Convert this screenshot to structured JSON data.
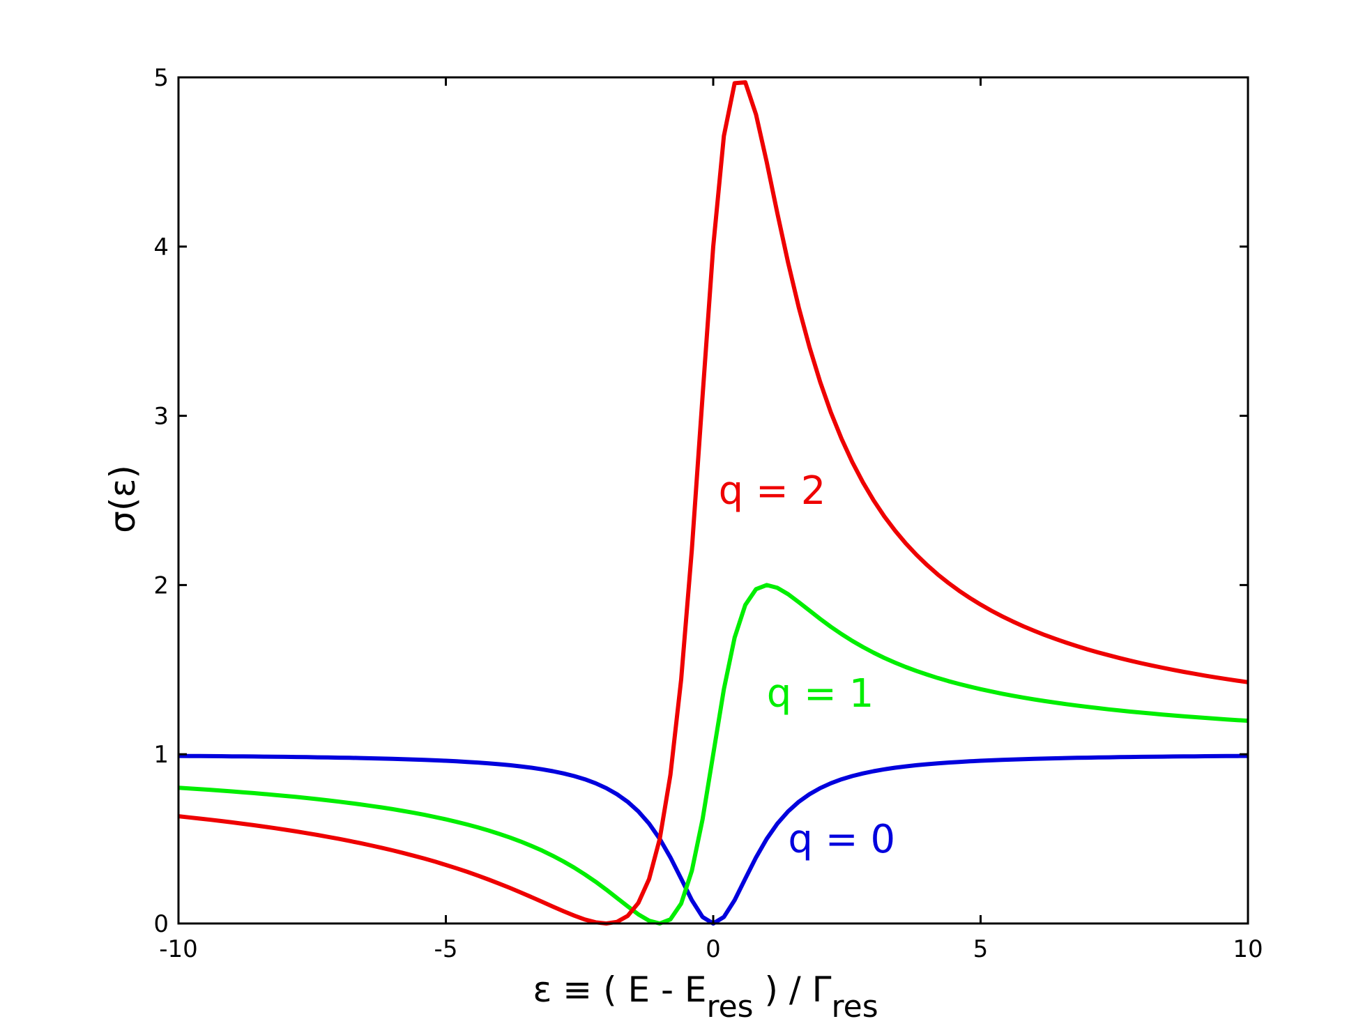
{
  "chart_data": {
    "type": "line",
    "title": "",
    "xlabel": {
      "main": "ε ≡ ( E - E",
      "sub1": "res",
      "mid": " ) / Γ",
      "sub2": "res"
    },
    "ylabel": "σ(ε)",
    "xlim": [
      -10,
      10
    ],
    "ylim": [
      0,
      5
    ],
    "xticks": [
      -10,
      -5,
      0,
      5,
      10
    ],
    "yticks": [
      0,
      1,
      2,
      3,
      4,
      5
    ],
    "xtick_labels": [
      "-10",
      "-5",
      "0",
      "5",
      "10"
    ],
    "ytick_labels": [
      "0",
      "1",
      "2",
      "3",
      "4",
      "5"
    ],
    "grid": false,
    "legend": "none (inline curve labels)",
    "function": "σ(ε) = (q + ε)² / (1 + ε²)",
    "x_sampling": {
      "start": -10,
      "end": 10,
      "count": 101
    },
    "series": [
      {
        "q": 0,
        "color": "#0000dd",
        "label": "q = 0",
        "label_anchor": {
          "x": 1.4,
          "y": 0.42
        }
      },
      {
        "q": 1,
        "color": "#00ee00",
        "label": "q = 1",
        "label_anchor": {
          "x": 1.0,
          "y": 1.28
        }
      },
      {
        "q": 2,
        "color": "#ee0000",
        "label": "q = 2",
        "label_anchor": {
          "x": 0.1,
          "y": 2.48
        }
      }
    ]
  }
}
